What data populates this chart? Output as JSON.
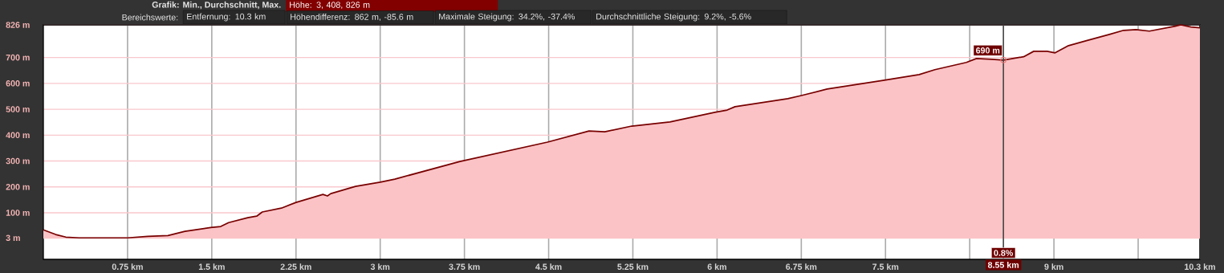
{
  "chart_data": {
    "type": "area",
    "title": "Grafik: Min., Durchschnitt, Max.",
    "subtitle": "Höhe: 3, 408, 826 m",
    "annotations": [
      "Bereichswerte:",
      "Entfernung: 10.3 km",
      "Höhendifferenz: 862 m, -85.6 m",
      "Maximale Steigung: 34.2%, -37.4%",
      "Durchschnittliche Steigung: 9.2%, -5.6%",
      {
        "text": "690 m",
        "x": 8.55,
        "y": 690
      },
      {
        "text": "0.8%",
        "x": 8.55
      }
    ],
    "x": [
      0,
      0.11,
      0.2,
      0.32,
      0.53,
      0.75,
      0.93,
      1.11,
      1.26,
      1.49,
      1.58,
      1.65,
      1.82,
      1.9,
      1.95,
      2.12,
      2.25,
      2.49,
      2.53,
      2.56,
      2.78,
      3.0,
      3.13,
      3.71,
      4.49,
      4.86,
      5.0,
      5.24,
      5.58,
      5.98,
      6.09,
      6.16,
      6.63,
      6.75,
      6.98,
      7.49,
      7.8,
      7.94,
      8.22,
      8.31,
      8.45,
      8.55,
      8.73,
      8.82,
      8.94,
      9.01,
      9.13,
      9.29,
      9.5,
      9.62,
      9.73,
      9.85,
      10.08,
      10.13,
      10.22,
      10.3
    ],
    "series": [
      {
        "color": "#fbc3c6",
        "values": [
          34,
          16,
          6,
          3,
          3,
          3,
          9,
          12,
          28,
          43,
          47,
          62,
          81,
          87,
          103,
          118,
          140,
          171,
          165,
          174,
          202,
          218,
          230,
          298,
          373,
          416,
          413,
          435,
          451,
          488,
          497,
          510,
          541,
          553,
          578,
          612,
          634,
          653,
          681,
          696,
          693,
          690,
          703,
          724,
          724,
          718,
          746,
          765,
          790,
          805,
          808,
          802,
          821,
          826,
          818,
          815
        ]
      }
    ],
    "xlim": [
      0,
      10.3
    ],
    "ylim": [
      -80,
      826
    ],
    "xticks": [
      {
        "value": 0.75,
        "label": "0.75 km"
      },
      {
        "value": 1.5,
        "label": "1.5 km"
      },
      {
        "value": 2.25,
        "label": "2.25 km"
      },
      {
        "value": 3,
        "label": "3 km"
      },
      {
        "value": 3.75,
        "label": "3.75 km"
      },
      {
        "value": 4.5,
        "label": "4.5 km"
      },
      {
        "value": 5.25,
        "label": "5.25 km"
      },
      {
        "value": 6,
        "label": "6 km"
      },
      {
        "value": 6.75,
        "label": "6.75 km"
      },
      {
        "value": 7.5,
        "label": "7.5 km"
      },
      {
        "value": 8.25,
        "label": null
      },
      {
        "value": 9,
        "label": "9 km"
      },
      {
        "value": 9.75,
        "label": null
      },
      {
        "value": 10.3,
        "label": "10.3 km"
      }
    ],
    "yticks": [
      {
        "value": 3,
        "label": "3 m"
      },
      {
        "value": 100,
        "label": "100 m"
      },
      {
        "value": 200,
        "label": "200 m"
      },
      {
        "value": 300,
        "label": "300 m"
      },
      {
        "value": 400,
        "label": "400 m"
      },
      {
        "value": 500,
        "label": "500 m"
      },
      {
        "value": 600,
        "label": "600 m"
      },
      {
        "value": 700,
        "label": "700 m"
      },
      {
        "value": 826,
        "label": "826 m"
      }
    ],
    "grid": true,
    "ref_lines": [
      {
        "axis": "x",
        "value": 8.55,
        "label": "8.55 km",
        "color": "#444444"
      }
    ]
  }
}
